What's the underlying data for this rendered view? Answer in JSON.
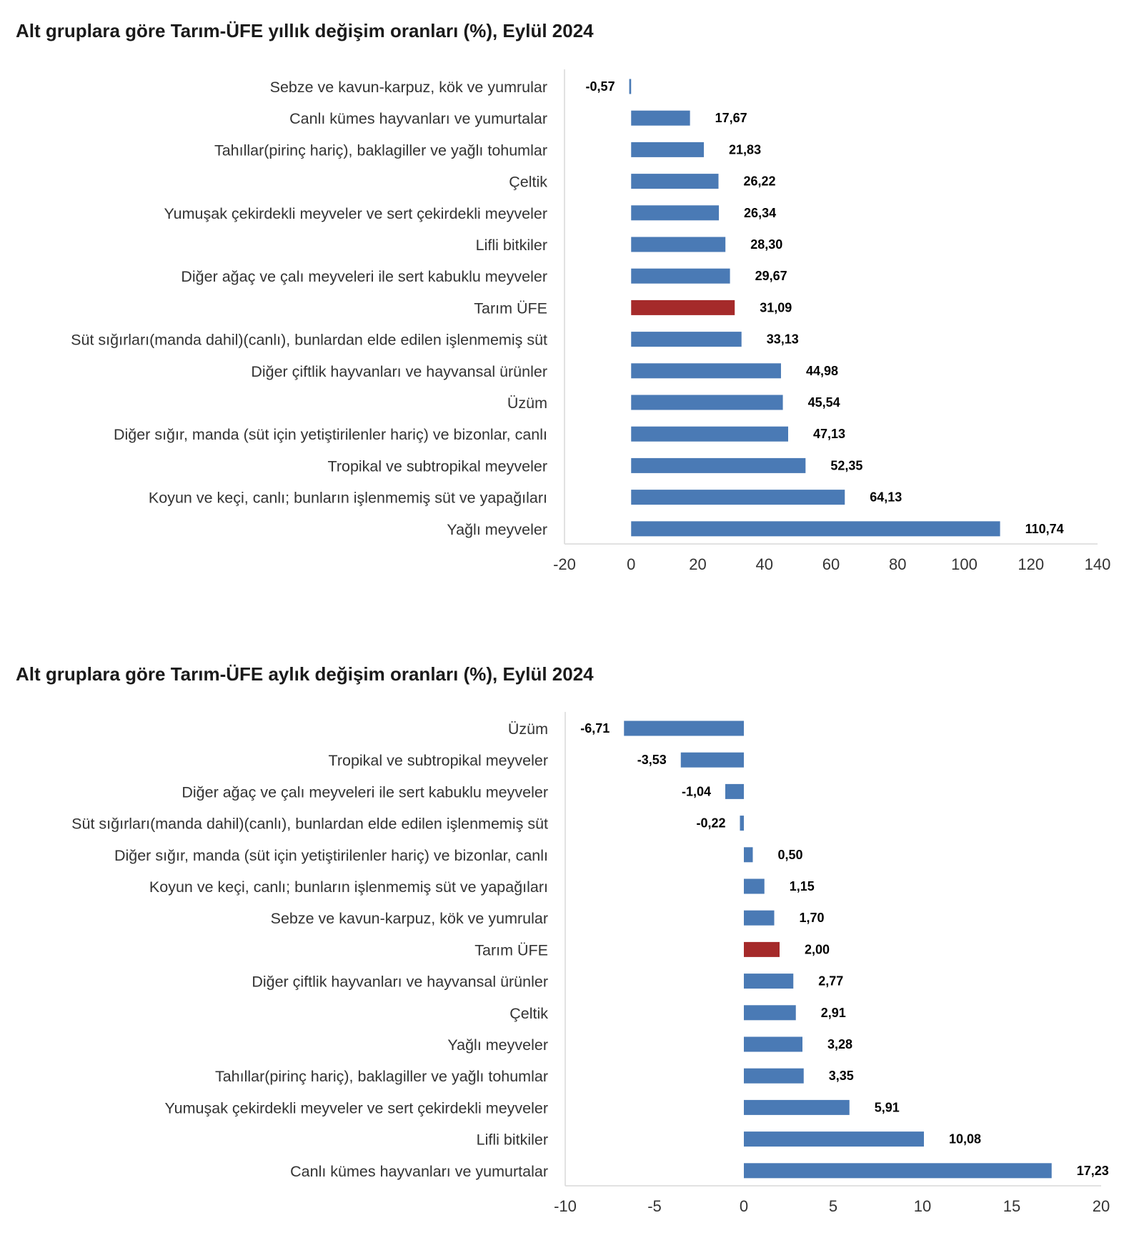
{
  "chart_data": [
    {
      "type": "bar",
      "orientation": "horizontal",
      "title": "Alt gruplara göre Tarım-ÜFE yıllık değişim oranları (%), Eylül 2024",
      "categories": [
        "Sebze ve kavun-karpuz, kök ve yumrular",
        "Canlı kümes hayvanları ve yumurtalar",
        "Tahıllar(pirinç hariç), baklagiller ve yağlı tohumlar",
        "Çeltik",
        "Yumuşak çekirdekli meyveler ve sert çekirdekli meyveler",
        "Lifli bitkiler",
        "Diğer ağaç ve çalı meyveleri ile sert kabuklu meyveler",
        "Tarım ÜFE",
        "Süt sığırları(manda dahil)(canlı), bunlardan elde edilen işlenmemiş süt",
        "Diğer çiftlik hayvanları ve hayvansal ürünler",
        "Üzüm",
        "Diğer sığır, manda (süt için yetiştirilenler hariç) ve bizonlar, canlı",
        "Tropikal ve subtropikal meyveler",
        "Koyun ve keçi, canlı; bunların işlenmemiş süt ve yapağıları",
        "Yağlı meyveler"
      ],
      "values": [
        -0.57,
        17.67,
        21.83,
        26.22,
        26.34,
        28.3,
        29.67,
        31.09,
        33.13,
        44.98,
        45.54,
        47.13,
        52.35,
        64.13,
        110.74
      ],
      "value_labels": [
        "-0,57",
        "17,67",
        "21,83",
        "26,22",
        "26,34",
        "28,30",
        "29,67",
        "31,09",
        "33,13",
        "44,98",
        "45,54",
        "47,13",
        "52,35",
        "64,13",
        "110,74"
      ],
      "highlight_category": "Tarım ÜFE",
      "xlim": [
        -20,
        140
      ],
      "xticks": [
        -20,
        0,
        20,
        40,
        60,
        80,
        100,
        120,
        140
      ],
      "xtick_labels": [
        "-20",
        "0",
        "20",
        "40",
        "60",
        "80",
        "100",
        "120",
        "140"
      ],
      "colors": {
        "bar": "#4a7ab5",
        "highlight": "#a52a2a"
      },
      "grid": false,
      "legend": "none"
    },
    {
      "type": "bar",
      "orientation": "horizontal",
      "title": "Alt gruplara göre Tarım-ÜFE aylık değişim oranları (%), Eylül 2024",
      "categories": [
        "Üzüm",
        "Tropikal ve subtropikal meyveler",
        "Diğer ağaç ve çalı meyveleri ile sert kabuklu meyveler",
        "Süt sığırları(manda dahil)(canlı), bunlardan elde edilen işlenmemiş süt",
        "Diğer sığır, manda (süt için yetiştirilenler hariç) ve bizonlar, canlı",
        "Koyun ve keçi, canlı; bunların işlenmemiş süt ve yapağıları",
        "Sebze ve kavun-karpuz, kök ve yumrular",
        "Tarım ÜFE",
        "Diğer çiftlik hayvanları ve hayvansal ürünler",
        "Çeltik",
        "Yağlı meyveler",
        "Tahıllar(pirinç hariç), baklagiller ve yağlı tohumlar",
        "Yumuşak çekirdekli meyveler ve sert çekirdekli meyveler",
        "Lifli bitkiler",
        "Canlı kümes hayvanları ve yumurtalar"
      ],
      "values": [
        -6.71,
        -3.53,
        -1.04,
        -0.22,
        0.5,
        1.15,
        1.7,
        2.0,
        2.77,
        2.91,
        3.28,
        3.35,
        5.91,
        10.08,
        17.23
      ],
      "value_labels": [
        "-6,71",
        "-3,53",
        "-1,04",
        "-0,22",
        "0,50",
        "1,15",
        "1,70",
        "2,00",
        "2,77",
        "2,91",
        "3,28",
        "3,35",
        "5,91",
        "10,08",
        "17,23"
      ],
      "highlight_category": "Tarım ÜFE",
      "xlim": [
        -10,
        20
      ],
      "xticks": [
        -10,
        -5,
        0,
        5,
        10,
        15,
        20
      ],
      "xtick_labels": [
        "-10",
        "-5",
        "0",
        "5",
        "10",
        "15",
        "20"
      ],
      "colors": {
        "bar": "#4a7ab5",
        "highlight": "#a52a2a"
      },
      "grid": false,
      "legend": "none"
    }
  ]
}
